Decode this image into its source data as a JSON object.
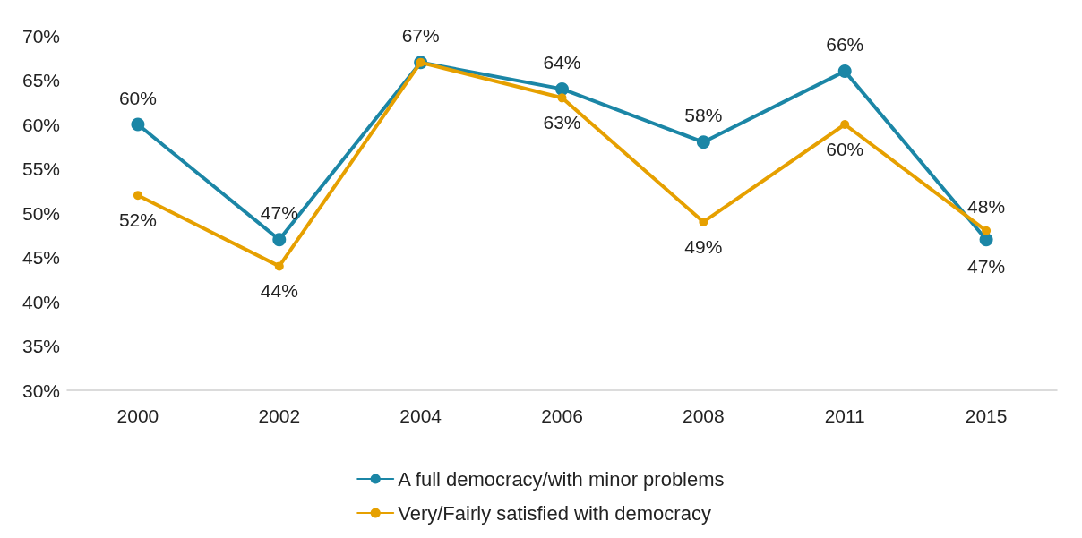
{
  "chart_data": {
    "type": "line",
    "categories": [
      "2000",
      "2002",
      "2004",
      "2006",
      "2008",
      "2011",
      "2015"
    ],
    "series": [
      {
        "name": "A full democracy/with minor problems",
        "color": "#1b86a6",
        "values": [
          60,
          47,
          67,
          64,
          58,
          66,
          47
        ],
        "value_labels": [
          "60%",
          "47%",
          "67%",
          "64%",
          "58%",
          "66%",
          "47%"
        ]
      },
      {
        "name": "Very/Fairly satisfied with democracy",
        "color": "#e6a000",
        "values": [
          52,
          44,
          67,
          63,
          49,
          60,
          48
        ],
        "value_labels": [
          "52%",
          "44%",
          null,
          "63%",
          "49%",
          "60%",
          "48%"
        ]
      }
    ],
    "ylim": [
      30,
      70
    ],
    "yticks": [
      {
        "value": 30,
        "label": "30%"
      },
      {
        "value": 35,
        "label": "35%"
      },
      {
        "value": 40,
        "label": "40%"
      },
      {
        "value": 45,
        "label": "45%"
      },
      {
        "value": 50,
        "label": "50%"
      },
      {
        "value": 55,
        "label": "55%"
      },
      {
        "value": 60,
        "label": "60%"
      },
      {
        "value": 65,
        "label": "65%"
      },
      {
        "value": 70,
        "label": "70%"
      }
    ],
    "grid": false,
    "legend": "bottom",
    "marker": "circle",
    "line_style": "solid"
  }
}
